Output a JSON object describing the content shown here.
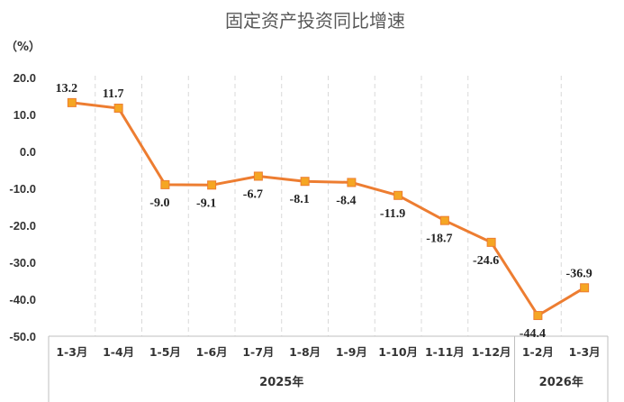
{
  "chart_data": {
    "type": "line",
    "title": "固定资产投资同比增速",
    "unit_label": "（%）",
    "categories": [
      "1-3月",
      "1-4月",
      "1-5月",
      "1-6月",
      "1-7月",
      "1-8月",
      "1-9月",
      "1-10月",
      "1-11月",
      "1-12月",
      "1-2月",
      "1-3月"
    ],
    "year_groups": [
      {
        "label": "2025年",
        "count": 10
      },
      {
        "label": "2026年",
        "count": 2
      }
    ],
    "series": [
      {
        "values": [
          13.2,
          11.7,
          -9.0,
          -9.1,
          -6.7,
          -8.1,
          -8.4,
          -11.9,
          -18.7,
          -24.6,
          -44.4,
          -36.9
        ],
        "data_labels": [
          "13.2",
          "11.7",
          "-9.0",
          "-9.1",
          "-6.7",
          "-8.1",
          "-8.4",
          "-11.9",
          "-18.7",
          "-24.6",
          "-44.4",
          "-36.9"
        ],
        "color": "#ED7D31",
        "marker_color": "#F5A623"
      }
    ],
    "ylim": [
      -50,
      20
    ],
    "yticks": [
      20,
      10,
      0,
      -10,
      -20,
      -30,
      -40,
      -50
    ],
    "ytick_labels": [
      "20.0",
      "10.0",
      "0.0",
      "-10.0",
      "-20.0",
      "-30.0",
      "-40.0",
      "-50.0"
    ],
    "grid": "vertical-dashed",
    "legend": "none"
  }
}
